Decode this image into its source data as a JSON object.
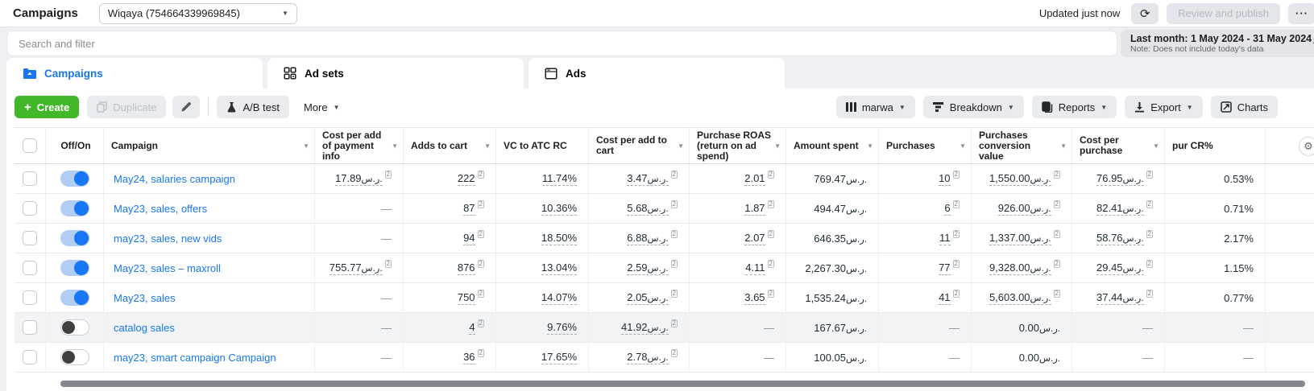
{
  "topbar": {
    "title": "Campaigns",
    "account": "Wiqaya (754664339969845)",
    "updated": "Updated just now",
    "review_publish": "Review and publish",
    "more_ellipsis": "···"
  },
  "filters": {
    "search_placeholder": "Search and filter",
    "date_range": "Last month: 1 May 2024 - 31 May 2024",
    "date_note": "Note: Does not include today's data"
  },
  "tabs": [
    {
      "label": "Campaigns",
      "active": true
    },
    {
      "label": "Ad sets",
      "active": false
    },
    {
      "label": "Ads",
      "active": false
    }
  ],
  "toolbar": {
    "create": "Create",
    "duplicate": "Duplicate",
    "ab_test": "A/B test",
    "more": "More",
    "columns": "marwa",
    "breakdown": "Breakdown",
    "reports": "Reports",
    "export": "Export",
    "charts": "Charts"
  },
  "table": {
    "currency": "ر.س.",
    "attribution_superscript": "2",
    "empty_value": "—",
    "columns": [
      {
        "label": "Off/On",
        "sortable": false
      },
      {
        "label": "Campaign",
        "sortable": true
      },
      {
        "label": "Cost per add of payment info",
        "sortable": true
      },
      {
        "label": "Adds to cart",
        "sortable": true
      },
      {
        "label": "VC to ATC RC",
        "sortable": false
      },
      {
        "label": "Cost per add to cart",
        "sortable": true
      },
      {
        "label": "Purchase ROAS (return on ad spend)",
        "sortable": true
      },
      {
        "label": "Amount spent",
        "sortable": true
      },
      {
        "label": "Purchases",
        "sortable": true
      },
      {
        "label": "Purchases conversion value",
        "sortable": true
      },
      {
        "label": "Cost per purchase",
        "sortable": true
      },
      {
        "label": "pur CR%",
        "sortable": false
      }
    ],
    "rows": [
      {
        "name": "May24, salaries campaign",
        "on": true,
        "highlight": false,
        "cells": [
          {
            "v": "17.89",
            "cur": true,
            "sup": true,
            "u": true
          },
          {
            "v": "222",
            "sup": true,
            "u": true
          },
          {
            "v": "11.74%",
            "u": true
          },
          {
            "v": "3.47",
            "cur": true,
            "sup": true,
            "u": true
          },
          {
            "v": "2.01",
            "sup": true,
            "u": true
          },
          {
            "v": "769.47",
            "cur": true
          },
          {
            "v": "10",
            "sup": true,
            "u": true
          },
          {
            "v": "1,550.00",
            "cur": true,
            "sup": true,
            "u": true
          },
          {
            "v": "76.95",
            "cur": true,
            "sup": true,
            "u": true
          },
          {
            "v": "0.53%"
          }
        ]
      },
      {
        "name": "May23, sales, offers",
        "on": true,
        "highlight": false,
        "cells": [
          null,
          {
            "v": "87",
            "sup": true,
            "u": true
          },
          {
            "v": "10.36%",
            "u": true
          },
          {
            "v": "5.68",
            "cur": true,
            "sup": true,
            "u": true
          },
          {
            "v": "1.87",
            "sup": true,
            "u": true
          },
          {
            "v": "494.47",
            "cur": true
          },
          {
            "v": "6",
            "sup": true,
            "u": true
          },
          {
            "v": "926.00",
            "cur": true,
            "sup": true,
            "u": true
          },
          {
            "v": "82.41",
            "cur": true,
            "sup": true,
            "u": true
          },
          {
            "v": "0.71%"
          }
        ]
      },
      {
        "name": "may23, sales, new vids",
        "on": true,
        "highlight": false,
        "cells": [
          null,
          {
            "v": "94",
            "sup": true,
            "u": true
          },
          {
            "v": "18.50%",
            "u": true
          },
          {
            "v": "6.88",
            "cur": true,
            "sup": true,
            "u": true
          },
          {
            "v": "2.07",
            "sup": true,
            "u": true
          },
          {
            "v": "646.35",
            "cur": true
          },
          {
            "v": "11",
            "sup": true,
            "u": true
          },
          {
            "v": "1,337.00",
            "cur": true,
            "sup": true,
            "u": true
          },
          {
            "v": "58.76",
            "cur": true,
            "sup": true,
            "u": true
          },
          {
            "v": "2.17%"
          }
        ]
      },
      {
        "name": "May23, sales – maxroll",
        "on": true,
        "highlight": false,
        "cells": [
          {
            "v": "755.77",
            "cur": true,
            "sup": true,
            "u": true
          },
          {
            "v": "876",
            "sup": true,
            "u": true
          },
          {
            "v": "13.04%",
            "u": true
          },
          {
            "v": "2.59",
            "cur": true,
            "sup": true,
            "u": true
          },
          {
            "v": "4.11",
            "sup": true,
            "u": true
          },
          {
            "v": "2,267.30",
            "cur": true
          },
          {
            "v": "77",
            "sup": true,
            "u": true
          },
          {
            "v": "9,328.00",
            "cur": true,
            "sup": true,
            "u": true
          },
          {
            "v": "29.45",
            "cur": true,
            "sup": true,
            "u": true
          },
          {
            "v": "1.15%"
          }
        ]
      },
      {
        "name": "May23, sales",
        "on": true,
        "highlight": false,
        "cells": [
          null,
          {
            "v": "750",
            "sup": true,
            "u": true
          },
          {
            "v": "14.07%",
            "u": true
          },
          {
            "v": "2.05",
            "cur": true,
            "sup": true,
            "u": true
          },
          {
            "v": "3.65",
            "sup": true,
            "u": true
          },
          {
            "v": "1,535.24",
            "cur": true
          },
          {
            "v": "41",
            "sup": true,
            "u": true
          },
          {
            "v": "5,603.00",
            "cur": true,
            "sup": true,
            "u": true
          },
          {
            "v": "37.44",
            "cur": true,
            "sup": true,
            "u": true
          },
          {
            "v": "0.77%"
          }
        ]
      },
      {
        "name": "catalog sales",
        "on": false,
        "highlight": true,
        "cells": [
          null,
          {
            "v": "4",
            "sup": true,
            "u": true
          },
          {
            "v": "9.76%",
            "u": true
          },
          {
            "v": "41.92",
            "cur": true,
            "sup": true,
            "u": true
          },
          null,
          {
            "v": "167.67",
            "cur": true
          },
          null,
          {
            "v": "0.00",
            "cur": true
          },
          null,
          null
        ]
      },
      {
        "name": "may23, smart campaign Campaign",
        "on": false,
        "highlight": false,
        "cells": [
          null,
          {
            "v": "36",
            "sup": true,
            "u": true
          },
          {
            "v": "17.65%",
            "u": true
          },
          {
            "v": "2.78",
            "cur": true,
            "sup": true,
            "u": true
          },
          null,
          {
            "v": "100.05",
            "cur": true
          },
          null,
          {
            "v": "0.00",
            "cur": true
          },
          null,
          null
        ]
      }
    ]
  }
}
